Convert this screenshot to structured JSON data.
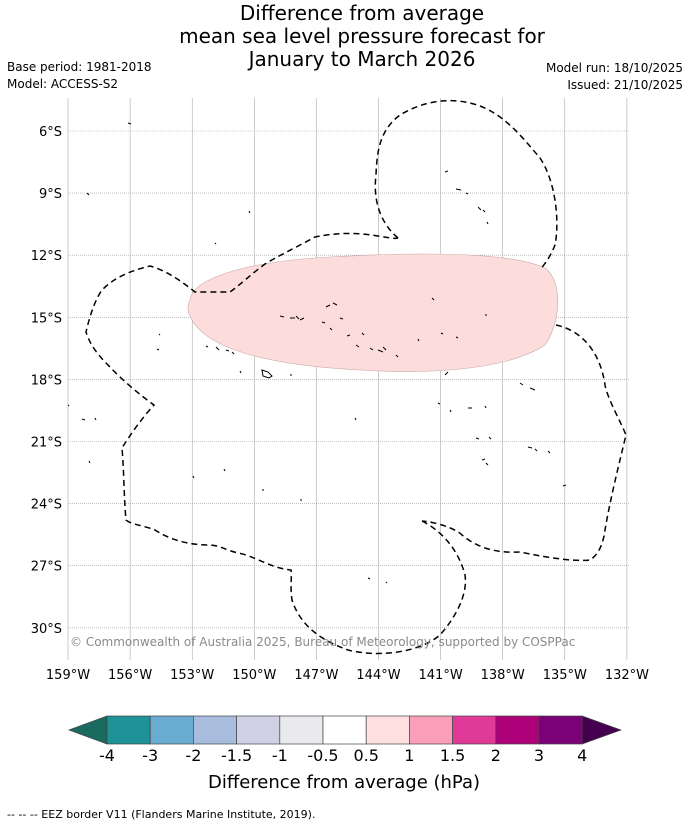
{
  "title": {
    "line1": "Difference from average",
    "line2": "mean sea level pressure forecast for",
    "line3": "January to March 2026"
  },
  "meta": {
    "base_period": "Base period: 1981-2018",
    "model": "Model: ACCESS-S2",
    "model_run": "Model run: 18/10/2025",
    "issued": "Issued: 21/10/2025"
  },
  "map": {
    "lat_labels": [
      "6°S",
      "9°S",
      "12°S",
      "15°S",
      "18°S",
      "21°S",
      "24°S",
      "27°S",
      "30°S"
    ],
    "lon_labels": [
      "159°W",
      "156°W",
      "153°W",
      "150°W",
      "147°W",
      "144°W",
      "141°W",
      "138°W",
      "135°W",
      "132°W"
    ],
    "copyright": "© Commonwealth of Australia 2025, Bureau of Meteorology, supported by COSPPac",
    "anomaly_region_fill": "#fddcdc",
    "anomaly_region_category": "0.5 to 1"
  },
  "colorbar": {
    "tick_labels": [
      "-4",
      "-3",
      "-2",
      "-1.5",
      "-1",
      "-0.5",
      "0.5",
      "1",
      "1.5",
      "2",
      "3",
      "4"
    ],
    "colors": [
      "#196a5f",
      "#1f9297",
      "#6bacd2",
      "#a8bcde",
      "#d1d1e6",
      "#eaeaee",
      "#ffffff",
      "#fee0e0",
      "#fa9fb9",
      "#df3a98",
      "#ae0079",
      "#7a0177",
      "#44004f"
    ],
    "label": "Difference from average (hPa)"
  },
  "footer": {
    "legend_text": "--  --  -- EEZ border V11 (Flanders Marine Institute, 2019)."
  }
}
